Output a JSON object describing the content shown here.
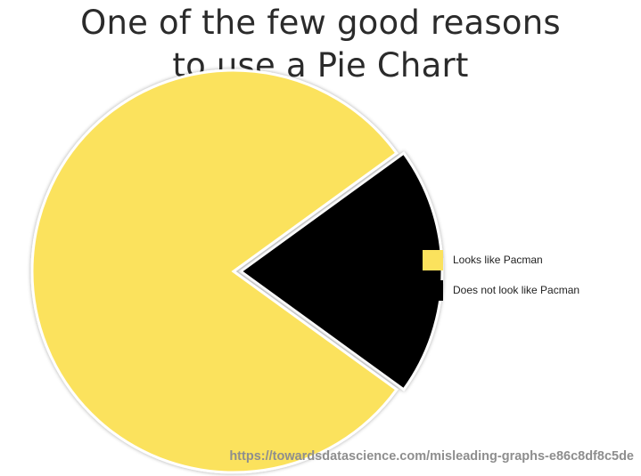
{
  "title": {
    "line1": "One of the few good reasons",
    "line2": "to use a Pie Chart"
  },
  "source": "https://towardsdatascience.com/misleading-graphs-e86c8df8c5de",
  "chart_data": {
    "type": "pie",
    "categories": [
      "Looks like Pacman",
      "Does not look like Pacman"
    ],
    "values": [
      80,
      20
    ],
    "colors": [
      "#fbe25d",
      "#000000"
    ],
    "legend_position": "right",
    "exploded_slice": "Does not look like Pacman"
  }
}
